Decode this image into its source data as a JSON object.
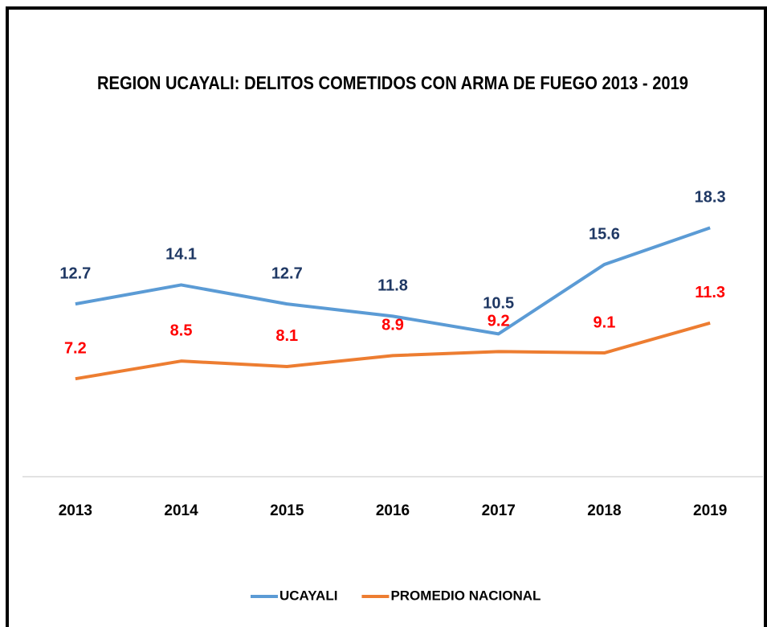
{
  "chart_data": {
    "type": "line",
    "title": "REGION UCAYALI: DELITOS COMETIDOS CON ARMA DE FUEGO 2013 - 2019",
    "categories": [
      "2013",
      "2014",
      "2015",
      "2016",
      "2017",
      "2018",
      "2019"
    ],
    "series": [
      {
        "name": "UCAYALI",
        "color": "#5b9bd5",
        "label_color": "#1f3864",
        "values": [
          12.7,
          14.1,
          12.7,
          11.8,
          10.5,
          15.6,
          18.3
        ]
      },
      {
        "name": "PROMEDIO NACIONAL",
        "color": "#ed7d31",
        "label_color": "#ff0000",
        "values": [
          7.2,
          8.5,
          8.1,
          8.9,
          9.2,
          9.1,
          11.3
        ]
      }
    ],
    "ylim": [
      0,
      25
    ],
    "legend": "bottom"
  }
}
